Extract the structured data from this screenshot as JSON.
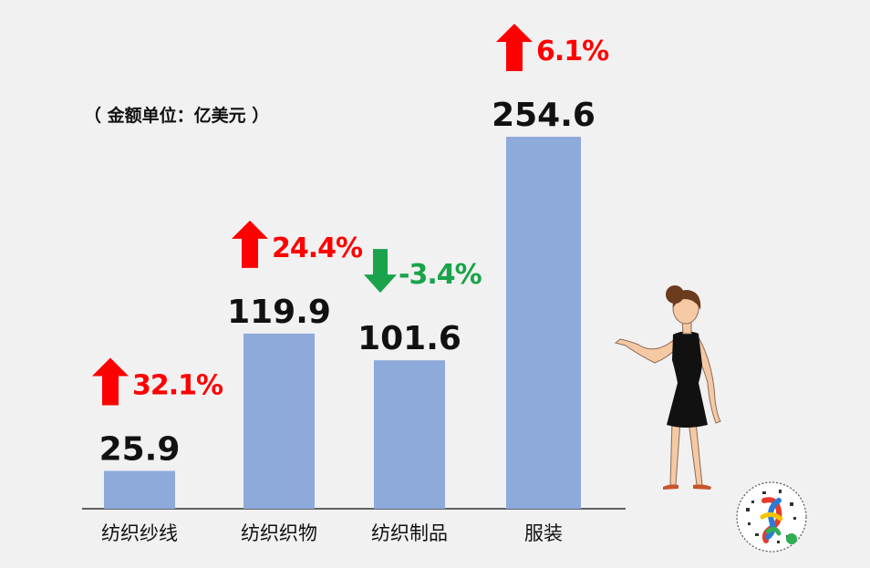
{
  "unit_note": "（ 金额单位：亿美元 ）",
  "colors": {
    "bar": "#8eaadb",
    "up": "#ff0000",
    "down": "#1aa34a",
    "value_text": "#111111"
  },
  "chart_data": {
    "type": "bar",
    "title": "",
    "xlabel": "",
    "ylabel": "",
    "categories": [
      "纺织纱线",
      "纺织织物",
      "纺织制品",
      "服装"
    ],
    "values": [
      25.9,
      119.9,
      101.6,
      254.6
    ],
    "value_labels": [
      "25.9",
      "119.9",
      "101.6",
      "254.6"
    ],
    "changes": [
      {
        "label": "32.1%",
        "direction": "up"
      },
      {
        "label": "24.4%",
        "direction": "up"
      },
      {
        "label": "-3.4%",
        "direction": "down"
      },
      {
        "label": "6.1%",
        "direction": "up"
      }
    ],
    "ylim": [
      0,
      254.6
    ],
    "grid": false,
    "legend": "none"
  }
}
